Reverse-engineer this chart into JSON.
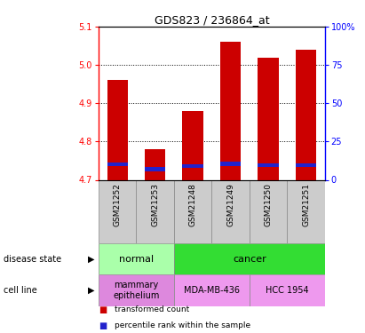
{
  "title": "GDS823 / 236864_at",
  "samples": [
    "GSM21252",
    "GSM21253",
    "GSM21248",
    "GSM21249",
    "GSM21250",
    "GSM21251"
  ],
  "transformed_counts": [
    4.96,
    4.78,
    4.88,
    5.06,
    5.02,
    5.04
  ],
  "percentile_ranks_pct": [
    10.0,
    7.0,
    9.0,
    10.5,
    9.5,
    9.5
  ],
  "ylim_left": [
    4.7,
    5.1
  ],
  "ylim_right": [
    0,
    100
  ],
  "yticks_left": [
    4.7,
    4.8,
    4.9,
    5.0,
    5.1
  ],
  "yticks_right": [
    0,
    25,
    50,
    75,
    100
  ],
  "bar_width": 0.55,
  "bar_color": "#cc0000",
  "percentile_color": "#2222cc",
  "disease_state": [
    {
      "label": "normal",
      "span": [
        0,
        2
      ],
      "color": "#aaffaa"
    },
    {
      "label": "cancer",
      "span": [
        2,
        6
      ],
      "color": "#33dd33"
    }
  ],
  "cell_line": [
    {
      "label": "mammary\nepithelium",
      "span": [
        0,
        2
      ],
      "color": "#dd88dd"
    },
    {
      "label": "MDA-MB-436",
      "span": [
        2,
        4
      ],
      "color": "#ee99ee"
    },
    {
      "label": "HCC 1954",
      "span": [
        4,
        6
      ],
      "color": "#ee99ee"
    }
  ],
  "left_labels": [
    "disease state",
    "cell line"
  ],
  "legend_items": [
    {
      "label": "transformed count",
      "color": "#cc0000"
    },
    {
      "label": "percentile rank within the sample",
      "color": "#2222cc"
    }
  ],
  "base_value": 4.7,
  "xticklabel_bg": "#cccccc"
}
